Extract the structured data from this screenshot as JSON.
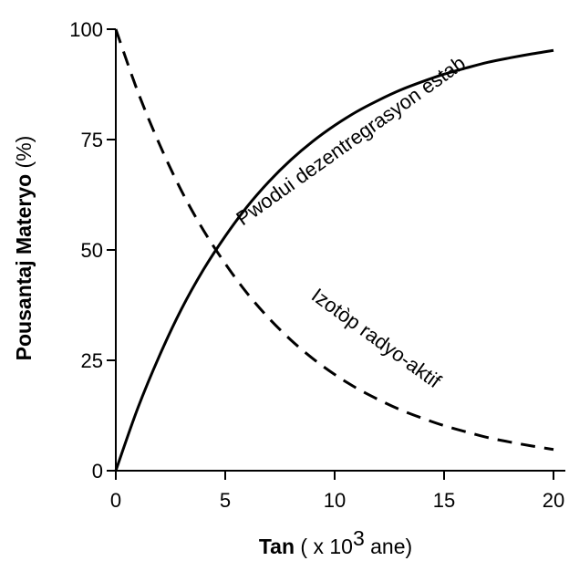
{
  "chart_data": {
    "type": "line",
    "xlabel": {
      "bold": "Tan",
      "pre": " ( x 10",
      "sup": "3",
      "post": " ane)"
    },
    "ylabel": {
      "bold": "Pousantaj Materyo",
      "normal": " (%)"
    },
    "xlim": [
      0,
      20
    ],
    "ylim": [
      0,
      100
    ],
    "xticks": [
      0,
      5,
      10,
      15,
      20
    ],
    "yticks": [
      0,
      25,
      50,
      75,
      100
    ],
    "grid": false,
    "series": [
      {
        "name": "Pwodui dezentregrasyon estab",
        "style": "solid",
        "color": "#000000",
        "x": [
          0,
          1,
          2,
          3,
          4,
          5,
          6,
          7,
          8,
          9,
          10,
          11,
          12,
          13,
          14,
          15,
          16,
          17,
          18,
          19,
          20
        ],
        "y": [
          0,
          14.1,
          26.1,
          36.6,
          45.5,
          53.1,
          59.8,
          65.5,
          70.4,
          74.6,
          78.2,
          81.3,
          83.9,
          86.2,
          88.1,
          89.8,
          91.2,
          92.5,
          93.5,
          94.4,
          95.2
        ]
      },
      {
        "name": "Izotòp radyo-aktif",
        "style": "dashed",
        "color": "#000000",
        "x": [
          0,
          1,
          2,
          3,
          4,
          5,
          6,
          7,
          8,
          9,
          10,
          11,
          12,
          13,
          14,
          15,
          16,
          17,
          18,
          19,
          20
        ],
        "y": [
          100,
          85.9,
          73.9,
          63.4,
          54.5,
          46.9,
          40.2,
          34.5,
          29.6,
          25.4,
          21.8,
          18.7,
          16.1,
          13.8,
          11.9,
          10.2,
          8.8,
          7.5,
          6.5,
          5.6,
          4.8
        ]
      }
    ]
  }
}
